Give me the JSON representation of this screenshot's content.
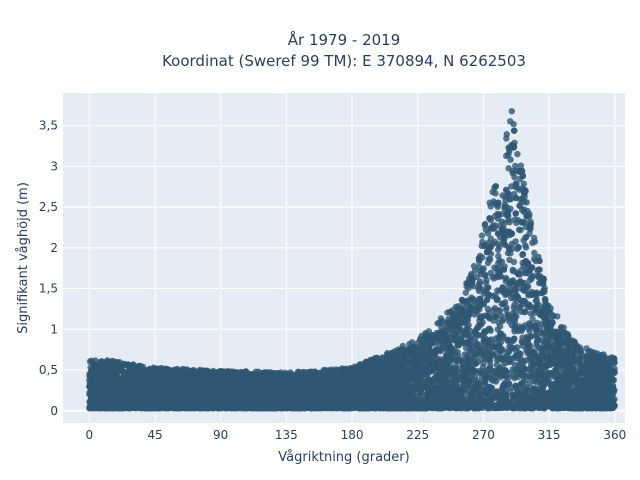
{
  "chart_data": {
    "type": "scatter",
    "title_line1": "År 1979 - 2019",
    "title_line2": "Koordinat (Sweref 99 TM): E 370894, N 6262503",
    "xlabel": "Vågriktning (grader)",
    "ylabel": "Signifikant våghöjd (m)",
    "xlim": [
      -18,
      367
    ],
    "ylim": [
      -0.15,
      3.9
    ],
    "x_ticks": [
      0,
      45,
      90,
      135,
      180,
      225,
      270,
      315,
      360
    ],
    "x_tick_labels": [
      "0",
      "45",
      "90",
      "135",
      "180",
      "225",
      "270",
      "315",
      "360"
    ],
    "y_ticks": [
      0,
      0.5,
      1,
      1.5,
      2,
      2.5,
      3,
      3.5
    ],
    "y_tick_labels": [
      "0",
      "0,5",
      "1",
      "1,5",
      "2",
      "2,5",
      "3",
      "3,5"
    ],
    "grid": true,
    "colors": {
      "plot_background": "#e5ecf6",
      "grid": "#ffffff",
      "marker": "#2f5873"
    },
    "series": [
      {
        "envelope": {
          "direction": [
            0,
            20,
            45,
            90,
            135,
            180,
            200,
            225,
            250,
            265,
            275,
            285,
            290,
            295,
            305,
            315,
            330,
            345,
            360
          ],
          "max_height": [
            0.6,
            0.58,
            0.5,
            0.46,
            0.44,
            0.5,
            0.65,
            0.85,
            1.25,
            1.8,
            2.6,
            3.3,
            3.72,
            3.1,
            2.1,
            1.3,
            0.85,
            0.7,
            0.62
          ]
        }
      }
    ]
  }
}
